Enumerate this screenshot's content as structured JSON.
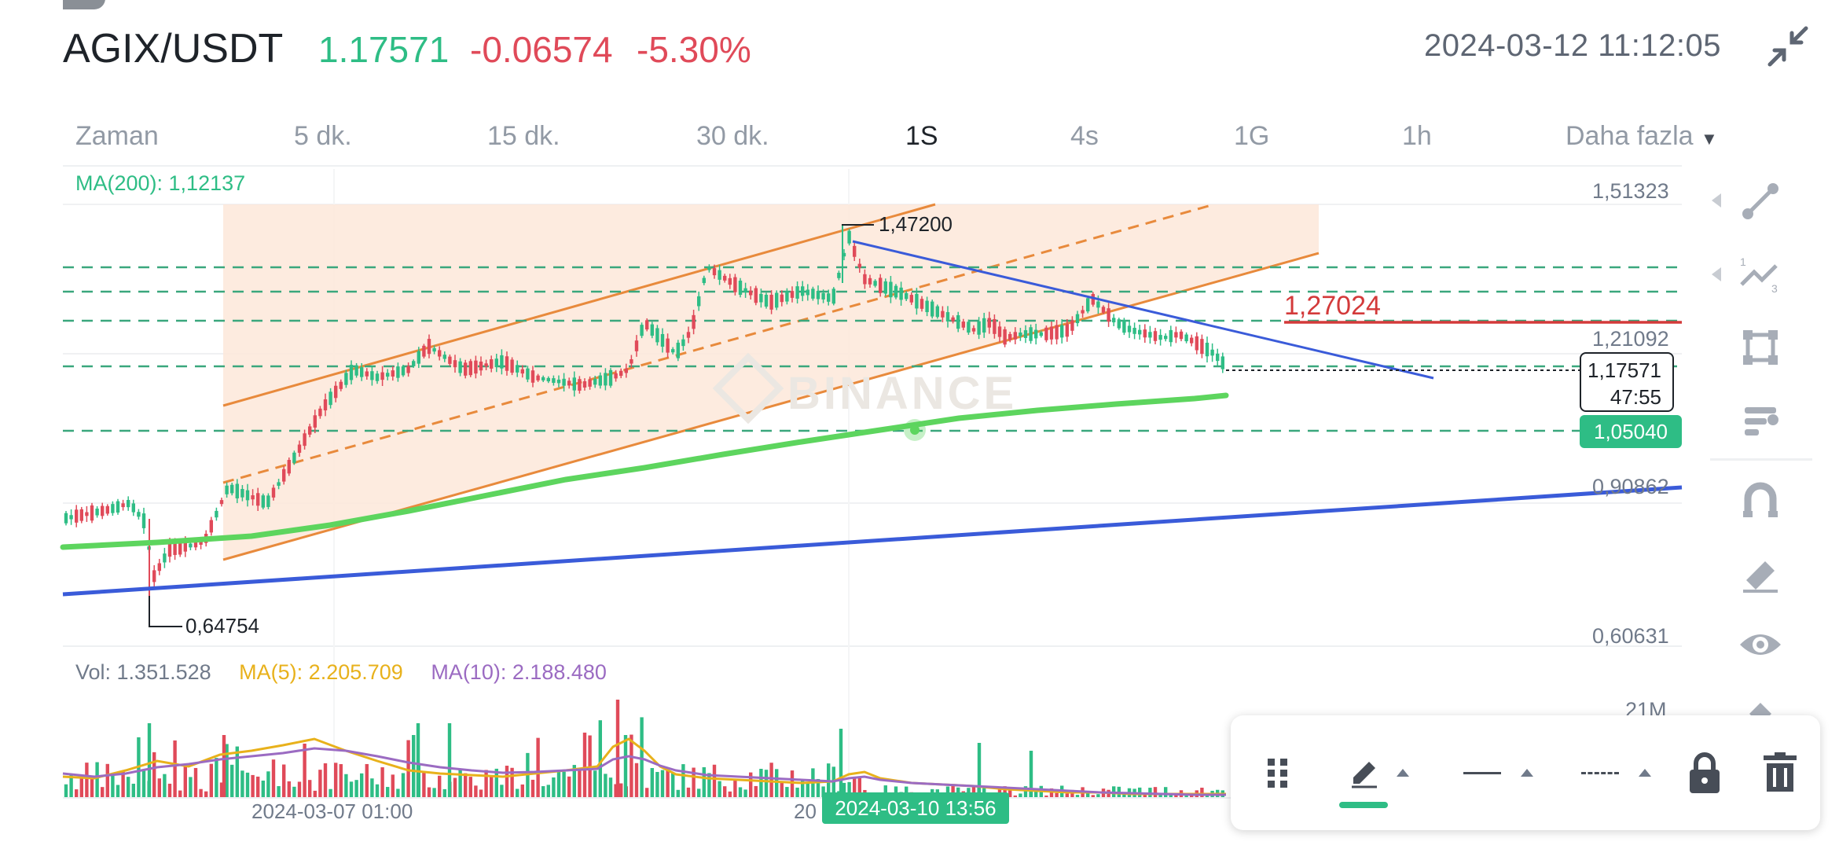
{
  "header": {
    "pair": "AGIX/USDT",
    "price": "1.17571",
    "change": "-0.06574",
    "change_pct": "-5.30%",
    "datetime": "2024-03-12 11:12:05",
    "collapse_icon": "collapse-icon"
  },
  "tabs": [
    {
      "label": "Zaman",
      "active": false
    },
    {
      "label": "5 dk.",
      "active": false
    },
    {
      "label": "15 dk.",
      "active": false
    },
    {
      "label": "30 dk.",
      "active": false
    },
    {
      "label": "1S",
      "active": true
    },
    {
      "label": "4s",
      "active": false
    },
    {
      "label": "1G",
      "active": false
    },
    {
      "label": "1h",
      "active": false
    },
    {
      "label": "Daha fazla",
      "active": false
    }
  ],
  "indicators": {
    "ma200": "MA(200): 1,12137"
  },
  "price_axis": {
    "top": "1,51323",
    "mid_high": "1,21092",
    "current": "1,17571",
    "countdown": "47:55",
    "ma_tag": "1,05040",
    "mid_low": "0,90862",
    "bottom": "0,60631"
  },
  "annotations": {
    "high_label": "1,47200",
    "low_label": "0,64754",
    "resistance_label": "1,27024",
    "watermark": "BINANCE"
  },
  "volume": {
    "vol": "Vol: 1.351.528",
    "ma5": "MA(5): 2.205.709",
    "ma10": "MA(10): 2.188.480",
    "max_label": "21M"
  },
  "time_axis": {
    "label_1": "2024-03-07 01:00",
    "label_2_partial": "20",
    "crosshair_label": "2024-03-10 13:56"
  },
  "colors": {
    "up": "#2ebd85",
    "down": "#e04a59",
    "ma200_line": "#5dd55e",
    "trend_blue": "#3a5bd9",
    "channel_orange": "#e88a3c",
    "resistance_red": "#d33a3a",
    "ma5": "#e8b11b",
    "ma10": "#9b6bc2"
  },
  "side_tools": [
    {
      "icon": "trend-line-icon",
      "has_arrow": true
    },
    {
      "icon": "fib-tool-icon",
      "has_arrow": true
    },
    {
      "icon": "rectangle-tool-icon",
      "has_arrow": false
    },
    {
      "icon": "position-tool-icon",
      "has_arrow": false
    },
    {
      "icon": "magnet-icon",
      "has_arrow": false
    },
    {
      "icon": "eraser-icon",
      "has_arrow": false
    },
    {
      "icon": "eye-icon",
      "has_arrow": false
    },
    {
      "icon": "more-tools-icon",
      "has_arrow": false
    }
  ],
  "drawing_toolbar": [
    {
      "icon": "drag-handle-icon"
    },
    {
      "icon": "pencil-icon",
      "selected": true
    },
    {
      "icon": "line-style-icon"
    },
    {
      "icon": "dash-style-icon"
    },
    {
      "icon": "lock-icon"
    },
    {
      "icon": "trash-icon"
    }
  ]
}
